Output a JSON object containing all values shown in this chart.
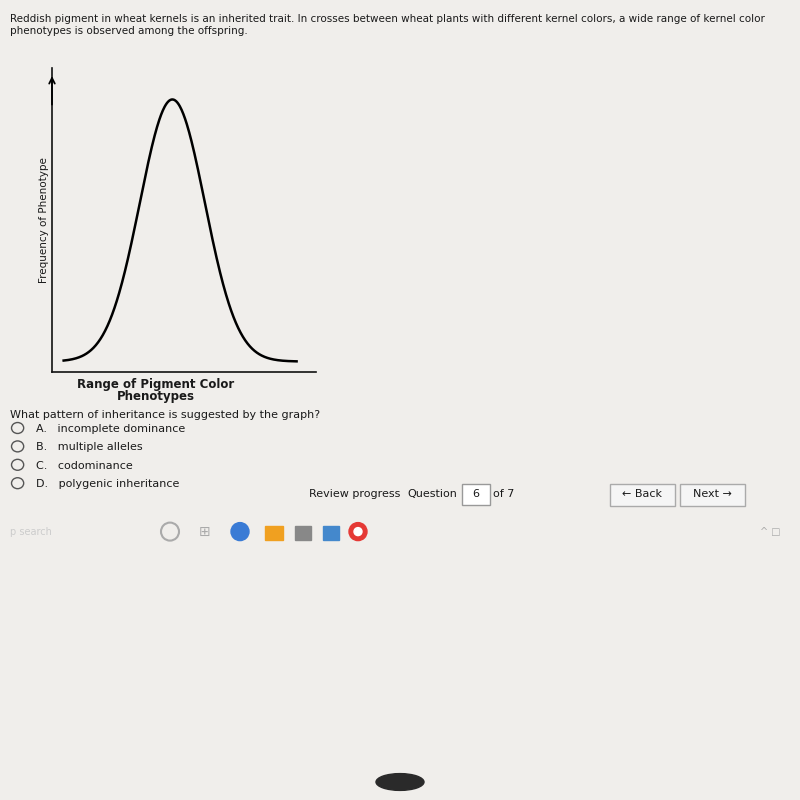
{
  "bg_white": "#f0eeeb",
  "bg_gray": "#c8c4bc",
  "bg_dark": "#2b3a5c",
  "bg_black": "#1a1a1a",
  "header_text_line1": "Reddish pigment in wheat kernels is an inherited trait. In crosses between wheat plants with different kernel colors, a wide range of kernel color",
  "header_text_line2": "phenotypes is observed among the offspring.",
  "ylabel": "Frequency of Phenotype",
  "xlabel_line1": "Range of Pigment Color",
  "xlabel_line2": "Phenotypes",
  "question": "What pattern of inheritance is suggested by the graph?",
  "options": [
    "A.   incomplete dominance",
    "B.   multiple alleles",
    "C.   codominance",
    "D.   polygenic inheritance"
  ],
  "nav_review": "Review progress",
  "nav_question": "Question",
  "nav_num": "6",
  "nav_of": "of 7",
  "nav_back": "← Back",
  "nav_next": "Next →",
  "taskbar_search": "p search",
  "curve_color": "#000000",
  "white": "#ffffff",
  "light_gray": "#e8e4e0",
  "mid_gray": "#b0aba4",
  "dark_navy": "#2b3a5c",
  "text_dark": "#1a1a1a",
  "text_med": "#333333",
  "border_color": "#888888"
}
